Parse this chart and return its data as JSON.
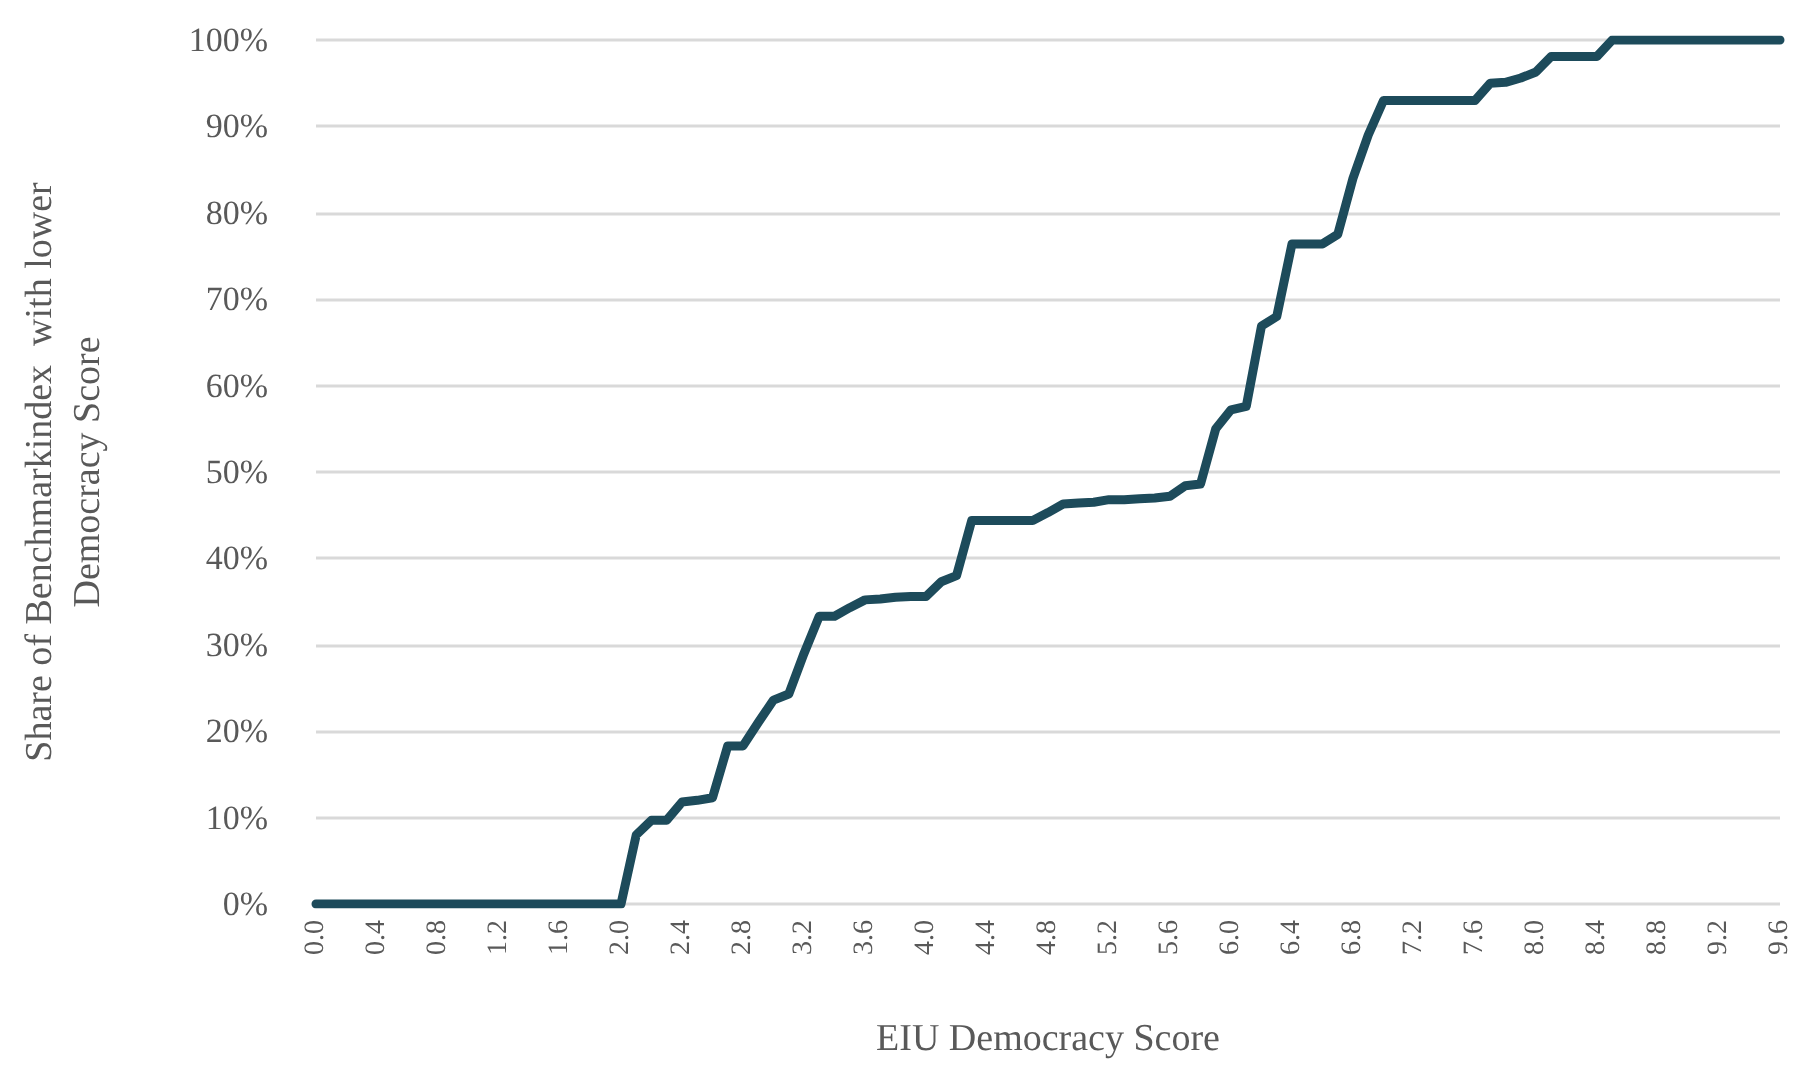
{
  "chart_data": {
    "type": "line",
    "xlabel": "EIU Democracy Score",
    "ylabel": "Share of Benchmarkindex  with lower\nDemocracy Score",
    "categories": [
      "0.0",
      null,
      null,
      null,
      "0.4",
      null,
      null,
      null,
      "0.8",
      null,
      null,
      null,
      "1.2",
      null,
      null,
      null,
      "1.6",
      null,
      null,
      null,
      "2.0",
      null,
      null,
      null,
      "2.4",
      null,
      null,
      null,
      "2.8",
      null,
      null,
      null,
      "3.2",
      null,
      null,
      null,
      "3.6",
      null,
      null,
      null,
      "4.0",
      null,
      null,
      null,
      "4.4",
      null,
      null,
      null,
      "4.8",
      null,
      null,
      null,
      "5.2",
      null,
      null,
      null,
      "5.6",
      null,
      null,
      null,
      "6.0",
      null,
      null,
      null,
      "6.4",
      null,
      null,
      null,
      "6.8",
      null,
      null,
      null,
      "7.2",
      null,
      null,
      null,
      "7.6",
      null,
      null,
      null,
      "8.0",
      null,
      null,
      null,
      "8.4",
      null,
      null,
      null,
      "8.8",
      null,
      null,
      null,
      "9.2",
      null,
      null,
      null,
      "9.6"
    ],
    "series": [
      {
        "color": "#1d4b5b",
        "values": [
          0,
          0,
          0,
          0,
          0,
          0,
          0,
          0,
          0,
          0,
          0,
          0,
          0,
          0,
          0,
          0,
          0,
          0,
          0,
          0,
          0,
          8,
          9.7,
          9.7,
          11.8,
          12,
          12.3,
          18.3,
          18.3,
          21,
          23.6,
          24.3,
          29,
          33.3,
          33.3,
          34.3,
          35.2,
          35.3,
          35.5,
          35.6,
          35.6,
          37.3,
          38,
          44.4,
          44.4,
          44.4,
          44.4,
          44.4,
          45.3,
          46.3,
          46.4,
          46.5,
          46.8,
          46.8,
          46.9,
          47,
          47.2,
          48.4,
          48.6,
          55,
          57.2,
          57.6,
          66.9,
          68,
          76.4,
          76.4,
          76.4,
          77.5,
          84,
          89,
          93,
          93,
          93,
          93,
          93,
          93,
          93,
          95,
          95.1,
          95.6,
          96.3,
          98.1,
          98.1,
          98.1,
          98.1,
          100,
          100,
          100,
          100,
          100,
          100,
          100,
          100,
          100,
          100,
          100,
          100
        ]
      }
    ],
    "ylim": [
      0,
      100
    ],
    "yticks": [
      {
        "value": 0,
        "label": "0%"
      },
      {
        "value": 10,
        "label": "10%"
      },
      {
        "value": 20,
        "label": "20%"
      },
      {
        "value": 30,
        "label": "30%"
      },
      {
        "value": 40,
        "label": "40%"
      },
      {
        "value": 50,
        "label": "50%"
      },
      {
        "value": 60,
        "label": "60%"
      },
      {
        "value": 70,
        "label": "70%"
      },
      {
        "value": 80,
        "label": "80%"
      },
      {
        "value": 90,
        "label": "90%"
      },
      {
        "value": 100,
        "label": "100%"
      }
    ],
    "grid": "y",
    "marker": "none",
    "line_style": "solid"
  }
}
